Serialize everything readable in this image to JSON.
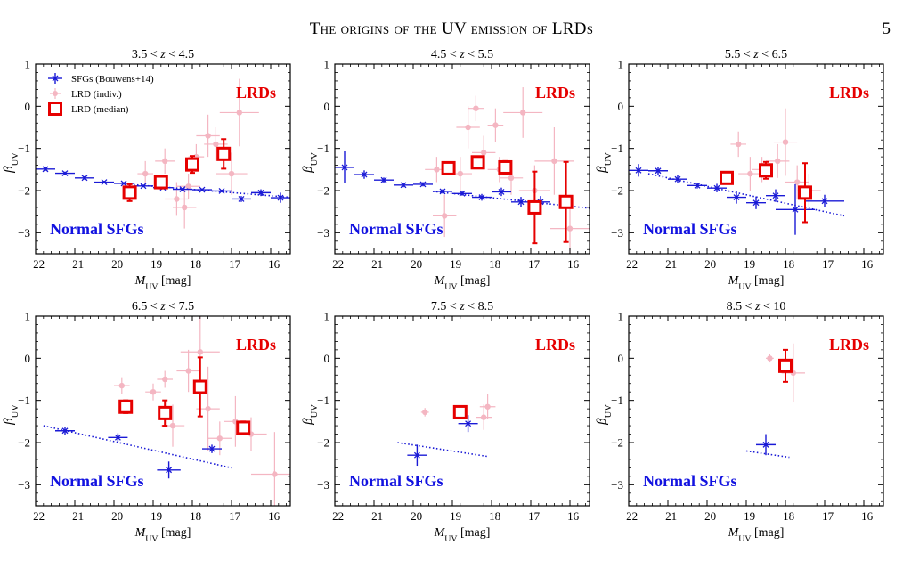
{
  "header": {
    "running_title": "The origins of the UV emission of LRDs",
    "page_number": "5"
  },
  "colors": {
    "sfg": "#1a1ad6",
    "lrd_individual": "#f4b6c2",
    "lrd_median": "#e60000",
    "overlay_text_sfg": "#1212e0",
    "overlay_text_lrd": "#e60000"
  },
  "chart_data": [
    {
      "type": "scatter",
      "title": "3.5 < z < 4.5",
      "xlabel": "M_UV [mag]",
      "ylabel": "β_UV",
      "xlim": [
        -22,
        -15.5
      ],
      "ylim": [
        -3.5,
        1
      ],
      "x_ticks": [
        -22,
        -21,
        -20,
        -19,
        -18,
        -17,
        -16
      ],
      "y_ticks": [
        1,
        0,
        -1,
        -2,
        -3
      ],
      "overlay_labels": {
        "lrd": "LRDs",
        "sfg": "Normal SFGs"
      },
      "legend": {
        "position": "top-left",
        "entries": [
          "SFGs (Bouwens+14)",
          "LRD (indiv.)",
          "LRD (median)"
        ]
      },
      "sfg_relation": [
        [
          -19.5,
          -1.86
        ],
        [
          -15.5,
          -2.16
        ]
      ],
      "sfg_points": [
        {
          "x": -21.75,
          "y": -1.49,
          "xerr": 0.25,
          "yerr": 0.04
        },
        {
          "x": -21.25,
          "y": -1.59,
          "xerr": 0.25,
          "yerr": 0.04
        },
        {
          "x": -20.75,
          "y": -1.7,
          "xerr": 0.25,
          "yerr": 0.04
        },
        {
          "x": -20.25,
          "y": -1.8,
          "xerr": 0.25,
          "yerr": 0.03
        },
        {
          "x": -19.75,
          "y": -1.83,
          "xerr": 0.25,
          "yerr": 0.03
        },
        {
          "x": -19.25,
          "y": -1.89,
          "xerr": 0.25,
          "yerr": 0.03
        },
        {
          "x": -18.75,
          "y": -1.93,
          "xerr": 0.25,
          "yerr": 0.03
        },
        {
          "x": -18.25,
          "y": -1.97,
          "xerr": 0.25,
          "yerr": 0.03
        },
        {
          "x": -17.75,
          "y": -1.98,
          "xerr": 0.25,
          "yerr": 0.03
        },
        {
          "x": -17.25,
          "y": -2.01,
          "xerr": 0.25,
          "yerr": 0.03
        },
        {
          "x": -16.75,
          "y": -2.2,
          "xerr": 0.25,
          "yerr": 0.07
        },
        {
          "x": -16.25,
          "y": -2.05,
          "xerr": 0.25,
          "yerr": 0.08
        },
        {
          "x": -15.75,
          "y": -2.17,
          "xerr": 0.25,
          "yerr": 0.12
        }
      ],
      "lrd_individual": [
        {
          "x": -19.2,
          "y": -1.6,
          "xerr": 0.2,
          "yerr": 0.3
        },
        {
          "x": -18.7,
          "y": -1.3,
          "xerr": 0.25,
          "yerr": 0.3
        },
        {
          "x": -18.4,
          "y": -2.2,
          "xerr": 0.3,
          "yerr": 0.4
        },
        {
          "x": -18.1,
          "y": -1.9,
          "xerr": 0.3,
          "yerr": 0.3
        },
        {
          "x": -17.9,
          "y": -1.2,
          "xerr": 0.2,
          "yerr": 0.3
        },
        {
          "x": -17.6,
          "y": -0.7,
          "xerr": 0.3,
          "yerr": 0.5
        },
        {
          "x": -17.4,
          "y": -0.9,
          "xerr": 0.3,
          "yerr": 0.4
        },
        {
          "x": -16.8,
          "y": -0.15,
          "xerr": 0.5,
          "yerr": 0.8
        },
        {
          "x": -17.0,
          "y": -1.6,
          "xerr": 0.4,
          "yerr": 0.5
        },
        {
          "x": -18.2,
          "y": -2.4,
          "xerr": 0.3,
          "yerr": 0.5
        }
      ],
      "lrd_median": [
        {
          "x": -19.6,
          "y": -2.05,
          "yerr": 0.2
        },
        {
          "x": -18.8,
          "y": -1.8,
          "yerr": 0.15
        },
        {
          "x": -18.0,
          "y": -1.38,
          "yerr": 0.2
        },
        {
          "x": -17.2,
          "y": -1.13,
          "yerr": 0.35
        }
      ]
    },
    {
      "type": "scatter",
      "title": "4.5 < z < 5.5",
      "xlabel": "M_UV [mag]",
      "ylabel": "β_UV",
      "xlim": [
        -22,
        -15.5
      ],
      "ylim": [
        -3.5,
        1
      ],
      "x_ticks": [
        -22,
        -21,
        -20,
        -19,
        -18,
        -17,
        -16
      ],
      "y_ticks": [
        1,
        0,
        -1,
        -2,
        -3
      ],
      "overlay_labels": {
        "lrd": "LRDs",
        "sfg": "Normal SFGs"
      },
      "sfg_relation": [
        [
          -19.5,
          -2.02
        ],
        [
          -15.5,
          -2.42
        ]
      ],
      "sfg_points": [
        {
          "x": -21.75,
          "y": -1.45,
          "xerr": 0.25,
          "yerr": 0.38
        },
        {
          "x": -21.25,
          "y": -1.62,
          "xerr": 0.25,
          "yerr": 0.1
        },
        {
          "x": -20.75,
          "y": -1.75,
          "xerr": 0.25,
          "yerr": 0.06
        },
        {
          "x": -20.25,
          "y": -1.87,
          "xerr": 0.25,
          "yerr": 0.05
        },
        {
          "x": -19.75,
          "y": -1.85,
          "xerr": 0.25,
          "yerr": 0.05
        },
        {
          "x": -19.25,
          "y": -2.02,
          "xerr": 0.25,
          "yerr": 0.05
        },
        {
          "x": -18.75,
          "y": -2.07,
          "xerr": 0.25,
          "yerr": 0.05
        },
        {
          "x": -18.25,
          "y": -2.16,
          "xerr": 0.25,
          "yerr": 0.08
        },
        {
          "x": -17.75,
          "y": -2.03,
          "xerr": 0.25,
          "yerr": 0.1
        },
        {
          "x": -17.25,
          "y": -2.27,
          "xerr": 0.25,
          "yerr": 0.12
        },
        {
          "x": -16.75,
          "y": -2.27,
          "xerr": 0.25,
          "yerr": 0.14
        }
      ],
      "lrd_individual": [
        {
          "x": -19.4,
          "y": -1.5,
          "xerr": 0.3,
          "yerr": 0.3
        },
        {
          "x": -19.2,
          "y": -2.6,
          "xerr": 0.3,
          "yerr": 0.5
        },
        {
          "x": -18.8,
          "y": -1.6,
          "xerr": 0.3,
          "yerr": 0.4
        },
        {
          "x": -18.6,
          "y": -0.5,
          "xerr": 0.3,
          "yerr": 0.5
        },
        {
          "x": -18.4,
          "y": -0.05,
          "xerr": 0.2,
          "yerr": 0.3
        },
        {
          "x": -18.2,
          "y": -1.1,
          "xerr": 0.3,
          "yerr": 0.4
        },
        {
          "x": -17.9,
          "y": -0.45,
          "xerr": 0.2,
          "yerr": 0.4
        },
        {
          "x": -17.8,
          "y": -1.5,
          "xerr": 0.3,
          "yerr": 0.3
        },
        {
          "x": -17.5,
          "y": -1.7,
          "xerr": 0.3,
          "yerr": 0.4
        },
        {
          "x": -17.2,
          "y": -0.15,
          "xerr": 0.5,
          "yerr": 0.6
        },
        {
          "x": -16.9,
          "y": -2.0,
          "xerr": 0.4,
          "yerr": 0.6
        },
        {
          "x": -16.4,
          "y": -1.3,
          "xerr": 0.5,
          "yerr": 0.8
        },
        {
          "x": -16.0,
          "y": -2.9,
          "xerr": 0.5,
          "yerr": 0.8
        }
      ],
      "lrd_median": [
        {
          "x": -19.1,
          "y": -1.47,
          "yerr": 0.12
        },
        {
          "x": -18.35,
          "y": -1.33,
          "yerr": 0.12
        },
        {
          "x": -17.65,
          "y": -1.45,
          "yerr": 0.15
        },
        {
          "x": -16.9,
          "y": -2.4,
          "yerr": 0.85
        },
        {
          "x": -16.1,
          "y": -2.27,
          "yerr": 0.95
        }
      ]
    },
    {
      "type": "scatter",
      "title": "5.5 < z < 6.5",
      "xlabel": "M_UV [mag]",
      "ylabel": "β_UV",
      "xlim": [
        -22,
        -15.5
      ],
      "ylim": [
        -3.5,
        1
      ],
      "x_ticks": [
        -22,
        -21,
        -20,
        -19,
        -18,
        -17,
        -16
      ],
      "y_ticks": [
        1,
        0,
        -1,
        -2,
        -3
      ],
      "overlay_labels": {
        "lrd": "LRDs",
        "sfg": "Normal SFGs"
      },
      "sfg_relation": [
        [
          -21.5,
          -1.6
        ],
        [
          -16.5,
          -2.6
        ]
      ],
      "sfg_points": [
        {
          "x": -21.75,
          "y": -1.52,
          "xerr": 0.25,
          "yerr": 0.15
        },
        {
          "x": -21.25,
          "y": -1.53,
          "xerr": 0.25,
          "yerr": 0.1
        },
        {
          "x": -20.75,
          "y": -1.73,
          "xerr": 0.25,
          "yerr": 0.1
        },
        {
          "x": -20.25,
          "y": -1.88,
          "xerr": 0.25,
          "yerr": 0.07
        },
        {
          "x": -19.75,
          "y": -1.94,
          "xerr": 0.25,
          "yerr": 0.1
        },
        {
          "x": -19.25,
          "y": -2.16,
          "xerr": 0.25,
          "yerr": 0.15
        },
        {
          "x": -18.75,
          "y": -2.29,
          "xerr": 0.25,
          "yerr": 0.15
        },
        {
          "x": -18.25,
          "y": -2.12,
          "xerr": 0.25,
          "yerr": 0.15
        },
        {
          "x": -17.75,
          "y": -2.45,
          "xerr": 0.5,
          "yerr": 0.6
        },
        {
          "x": -17.0,
          "y": -2.25,
          "xerr": 0.5,
          "yerr": 0.15
        }
      ],
      "lrd_individual": [
        {
          "x": -19.2,
          "y": -0.9,
          "xerr": 0.2,
          "yerr": 0.3
        },
        {
          "x": -18.9,
          "y": -1.6,
          "xerr": 0.3,
          "yerr": 0.4
        },
        {
          "x": -18.6,
          "y": -1.5,
          "xerr": 0.25,
          "yerr": 0.3
        },
        {
          "x": -18.2,
          "y": -1.3,
          "xerr": 0.3,
          "yerr": 0.4
        },
        {
          "x": -18.0,
          "y": -0.85,
          "xerr": 0.3,
          "yerr": 0.8
        },
        {
          "x": -17.7,
          "y": -1.8,
          "xerr": 0.3,
          "yerr": 0.4
        },
        {
          "x": -17.4,
          "y": -2.0,
          "xerr": 0.3,
          "yerr": 0.4
        }
      ],
      "lrd_median": [
        {
          "x": -19.5,
          "y": -1.7,
          "yerr": 0.12
        },
        {
          "x": -18.5,
          "y": -1.52,
          "yerr": 0.2
        },
        {
          "x": -17.5,
          "y": -2.05,
          "yerr": 0.7
        }
      ]
    },
    {
      "type": "scatter",
      "title": "6.5 < z < 7.5",
      "xlabel": "M_UV [mag]",
      "ylabel": "β_UV",
      "xlim": [
        -22,
        -15.5
      ],
      "ylim": [
        -3.5,
        1
      ],
      "x_ticks": [
        -22,
        -21,
        -20,
        -19,
        -18,
        -17,
        -16
      ],
      "y_ticks": [
        1,
        0,
        -1,
        -2,
        -3
      ],
      "overlay_labels": {
        "lrd": "LRDs",
        "sfg": "Normal SFGs"
      },
      "sfg_relation": [
        [
          -21.8,
          -1.6
        ],
        [
          -17.0,
          -2.6
        ]
      ],
      "sfg_points": [
        {
          "x": -21.25,
          "y": -1.72,
          "xerr": 0.25,
          "yerr": 0.1
        },
        {
          "x": -19.9,
          "y": -1.88,
          "xerr": 0.25,
          "yerr": 0.1
        },
        {
          "x": -18.6,
          "y": -2.65,
          "xerr": 0.3,
          "yerr": 0.2
        },
        {
          "x": -17.5,
          "y": -2.15,
          "xerr": 0.25,
          "yerr": 0.1
        }
      ],
      "lrd_individual": [
        {
          "x": -19.8,
          "y": -0.65,
          "xerr": 0.2,
          "yerr": 0.2
        },
        {
          "x": -19.0,
          "y": -0.8,
          "xerr": 0.2,
          "yerr": 0.2
        },
        {
          "x": -18.7,
          "y": -0.5,
          "xerr": 0.2,
          "yerr": 0.2
        },
        {
          "x": -18.5,
          "y": -1.6,
          "xerr": 0.3,
          "yerr": 0.5
        },
        {
          "x": -18.1,
          "y": -0.3,
          "xerr": 0.3,
          "yerr": 0.5
        },
        {
          "x": -17.6,
          "y": -1.2,
          "xerr": 0.3,
          "yerr": 1.0
        },
        {
          "x": -17.3,
          "y": -1.9,
          "xerr": 0.3,
          "yerr": 0.4
        },
        {
          "x": -16.9,
          "y": -1.5,
          "xerr": 0.3,
          "yerr": 0.6
        },
        {
          "x": -16.5,
          "y": -1.8,
          "xerr": 0.4,
          "yerr": 0.4
        },
        {
          "x": -15.9,
          "y": -2.75,
          "xerr": 0.6,
          "yerr": 1.0
        },
        {
          "x": -17.8,
          "y": 0.15,
          "xerr": 0.5,
          "yerr": 1.0
        }
      ],
      "lrd_median": [
        {
          "x": -19.7,
          "y": -1.15,
          "yerr": 0.15
        },
        {
          "x": -18.7,
          "y": -1.3,
          "yerr": 0.3
        },
        {
          "x": -17.8,
          "y": -0.68,
          "yerr": 0.7
        },
        {
          "x": -16.7,
          "y": -1.65,
          "yerr": 0.15
        }
      ]
    },
    {
      "type": "scatter",
      "title": "7.5 < z < 8.5",
      "xlabel": "M_UV [mag]",
      "ylabel": "β_UV",
      "xlim": [
        -22,
        -15.5
      ],
      "ylim": [
        -3.5,
        1
      ],
      "x_ticks": [
        -22,
        -21,
        -20,
        -19,
        -18,
        -17,
        -16
      ],
      "y_ticks": [
        1,
        0,
        -1,
        -2,
        -3
      ],
      "overlay_labels": {
        "lrd": "LRDs",
        "sfg": "Normal SFGs"
      },
      "sfg_relation": [
        [
          -20.4,
          -2.0
        ],
        [
          -18.1,
          -2.33
        ]
      ],
      "sfg_points": [
        {
          "x": -19.9,
          "y": -2.3,
          "xerr": 0.25,
          "yerr": 0.25
        },
        {
          "x": -18.6,
          "y": -1.55,
          "xerr": 0.25,
          "yerr": 0.2
        }
      ],
      "lrd_individual": [
        {
          "x": -19.7,
          "y": -1.28,
          "xerr": 0.1,
          "yerr": 0.1
        },
        {
          "x": -18.2,
          "y": -1.4,
          "xerr": 0.2,
          "yerr": 0.3
        },
        {
          "x": -18.1,
          "y": -1.15,
          "xerr": 0.2,
          "yerr": 0.3
        }
      ],
      "lrd_median": [
        {
          "x": -18.8,
          "y": -1.28,
          "yerr": 0.12
        }
      ]
    },
    {
      "type": "scatter",
      "title": "8.5 < z < 10",
      "xlabel": "M_UV [mag]",
      "ylabel": "β_UV",
      "xlim": [
        -22,
        -15.5
      ],
      "ylim": [
        -3.5,
        1
      ],
      "x_ticks": [
        -22,
        -21,
        -20,
        -19,
        -18,
        -17,
        -16
      ],
      "y_ticks": [
        1,
        0,
        -1,
        -2,
        -3
      ],
      "overlay_labels": {
        "lrd": "LRDs",
        "sfg": "Normal SFGs"
      },
      "sfg_relation": [
        [
          -19.0,
          -2.2
        ],
        [
          -17.9,
          -2.35
        ]
      ],
      "sfg_points": [
        {
          "x": -18.5,
          "y": -2.05,
          "xerr": 0.25,
          "yerr": 0.25
        }
      ],
      "lrd_individual": [
        {
          "x": -18.4,
          "y": 0.0,
          "xerr": 0.1,
          "yerr": 0.1
        },
        {
          "x": -17.8,
          "y": -0.35,
          "xerr": 0.3,
          "yerr": 0.7
        }
      ],
      "lrd_median": [
        {
          "x": -18.0,
          "y": -0.18,
          "yerr": 0.38
        }
      ]
    }
  ]
}
